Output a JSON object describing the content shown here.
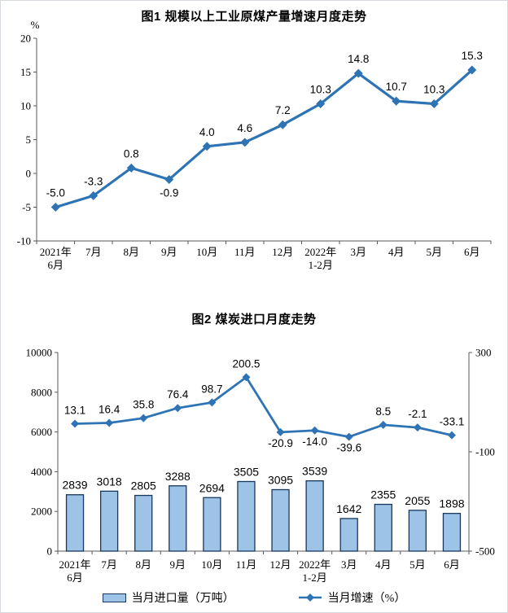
{
  "page": {
    "background": "#ffffff",
    "border_color": "#d6dade"
  },
  "colors": {
    "line": "#2E74B5",
    "bar_fill": "#9DC3E6",
    "bar_border": "#17375E",
    "axis": "#595959",
    "text": "#000000"
  },
  "chart_data": [
    {
      "type": "line",
      "title": "图1 规模以上工业原煤产量增速月度走势",
      "ylabel": "%",
      "categories": [
        "2021年\n6月",
        "7月",
        "8月",
        "9月",
        "10月",
        "11月",
        "12月",
        "2022年\n1-2月",
        "3月",
        "4月",
        "5月",
        "6月"
      ],
      "values": [
        -5.0,
        -3.3,
        0.8,
        -0.9,
        4.0,
        4.6,
        7.2,
        10.3,
        14.8,
        10.7,
        10.3,
        15.3
      ],
      "ylim": [
        -10,
        20
      ],
      "yticks": [
        20,
        15,
        10,
        5,
        0,
        -5,
        -10
      ],
      "grid": false,
      "legend_position": "none",
      "label_positions": [
        "above",
        "above",
        "above",
        "below",
        "above",
        "above",
        "above",
        "above",
        "above",
        "above",
        "above",
        "above"
      ]
    },
    {
      "type": "bar+line",
      "title": "图2 煤炭进口月度走势",
      "categories": [
        "2021年\n6月",
        "7月",
        "8月",
        "9月",
        "10月",
        "11月",
        "12月",
        "2022年\n1-2月",
        "3月",
        "4月",
        "5月",
        "6月"
      ],
      "series": [
        {
          "name": "当月进口量（万吨）",
          "type": "bar",
          "axis": "left",
          "values": [
            2839,
            3018,
            2805,
            3288,
            2694,
            3505,
            3095,
            3539,
            1642,
            2355,
            2055,
            1898
          ]
        },
        {
          "name": "当月增速（%）",
          "type": "line",
          "axis": "right",
          "values": [
            13.1,
            16.4,
            35.8,
            76.4,
            98.7,
            200.5,
            -20.9,
            -14.0,
            -39.6,
            8.5,
            -2.1,
            -33.1
          ],
          "label_positions": [
            "above",
            "above",
            "above",
            "above",
            "above",
            "above",
            "below",
            "below",
            "below",
            "above",
            "above",
            "above"
          ]
        }
      ],
      "left_axis": {
        "lim": [
          0,
          10000
        ],
        "ticks": [
          10000,
          8000,
          6000,
          4000,
          2000,
          0
        ]
      },
      "right_axis": {
        "lim": [
          -500,
          300
        ],
        "ticks": [
          300,
          -100,
          -500
        ]
      },
      "grid": false,
      "legend_position": "bottom"
    }
  ]
}
